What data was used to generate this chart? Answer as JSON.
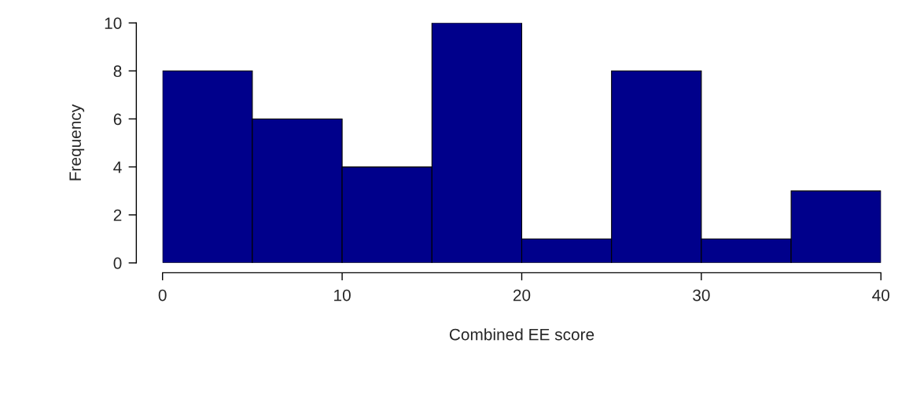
{
  "chart_data": {
    "type": "histogram",
    "xlabel": "Combined EE score",
    "ylabel": "Frequency",
    "bins": [
      0,
      5,
      10,
      15,
      20,
      25,
      30,
      35,
      40
    ],
    "values": [
      8,
      6,
      4,
      10,
      1,
      8,
      1,
      3
    ],
    "color": "#00008b",
    "xlim": [
      0,
      40
    ],
    "ylim": [
      0,
      10
    ],
    "xticks": [
      0,
      10,
      20,
      30,
      40
    ],
    "yticks": [
      0,
      2,
      4,
      6,
      8,
      10
    ],
    "grid": false
  }
}
